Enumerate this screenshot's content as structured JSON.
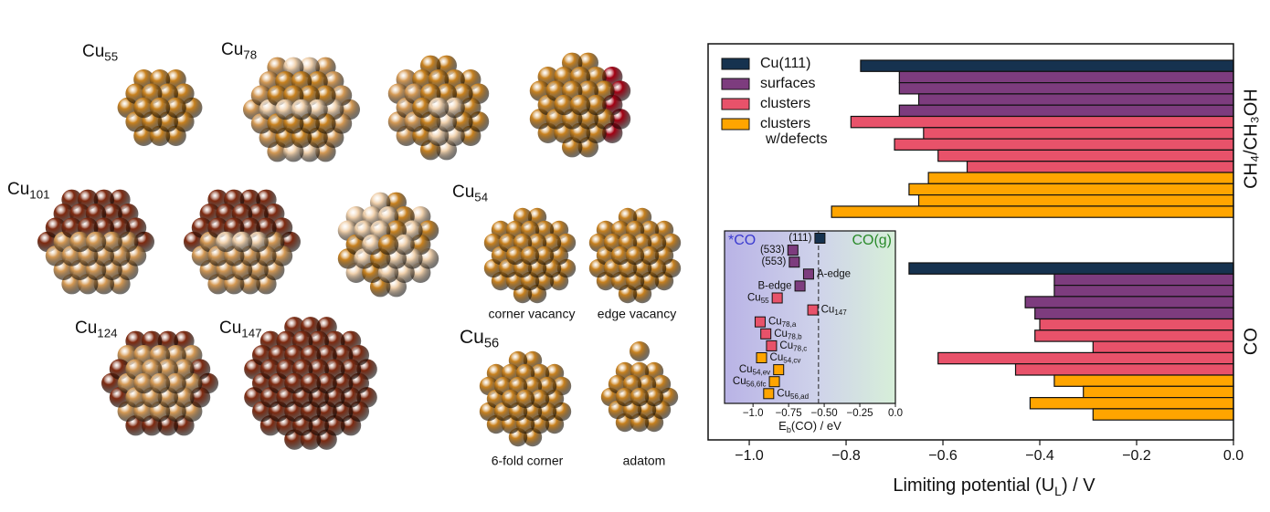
{
  "labels": {
    "cu55": {
      "text": "Cu",
      "sub": "55"
    },
    "cu78": {
      "text": "Cu",
      "sub": "78"
    },
    "cu101": {
      "text": "Cu",
      "sub": "101"
    },
    "cu54": {
      "text": "Cu",
      "sub": "54"
    },
    "cu124": {
      "text": "Cu",
      "sub": "124"
    },
    "cu147": {
      "text": "Cu",
      "sub": "147"
    },
    "cu56": {
      "text": "Cu",
      "sub": "56"
    },
    "corner": "corner vacancy",
    "edge": "edge vacancy",
    "sixfold": "6-fold corner",
    "adatom": "adatom"
  },
  "chart_data": [
    {
      "type": "bar",
      "xlabel": {
        "text": "Limiting potential (U",
        "sub": "L",
        "tail": ") / V"
      },
      "xlim": [
        -1.085,
        0
      ],
      "xticks": [
        {
          "value": -1.0,
          "label": "−1.0"
        },
        {
          "value": -0.8,
          "label": "−0.8"
        },
        {
          "value": -0.6,
          "label": "−0.6"
        },
        {
          "value": -0.4,
          "label": "−0.4"
        },
        {
          "value": -0.2,
          "label": "−0.2"
        },
        {
          "value": 0,
          "label": "0.0"
        }
      ],
      "legend": [
        {
          "name": "Cu(111)",
          "color": "#16324f"
        },
        {
          "name": "surfaces",
          "color": "#7d3c7e"
        },
        {
          "name": "clusters",
          "color": "#e8526a"
        },
        {
          "name": "clusters",
          "name2": "w/defects",
          "color": "#ffa500"
        }
      ],
      "groups": [
        {
          "label": "CH₄/CH₃OH",
          "series": [
            {
              "values": [
                -0.77
              ]
            },
            {
              "values": [
                -0.69,
                -0.69,
                -0.65,
                -0.69
              ]
            },
            {
              "values": [
                -0.79,
                -0.64,
                -0.7,
                -0.61,
                -0.55
              ]
            },
            {
              "values": [
                -0.63,
                -0.67,
                -0.65,
                -0.83
              ]
            }
          ]
        },
        {
          "label": "CO",
          "series": [
            {
              "values": [
                -0.67
              ]
            },
            {
              "values": [
                -0.37,
                -0.37,
                -0.43,
                -0.41
              ]
            },
            {
              "values": [
                -0.4,
                -0.41,
                -0.29,
                -0.61,
                -0.45
              ]
            },
            {
              "values": [
                -0.37,
                -0.31,
                -0.42,
                -0.29
              ]
            }
          ]
        }
      ]
    },
    {
      "type": "scatter",
      "xlabel": {
        "text": "E",
        "sub": "b",
        "tail": "(CO) / eV"
      },
      "left_label": "*CO",
      "right_label": "CO(g)",
      "xlim": [
        -1.2,
        0
      ],
      "xticks": [
        {
          "value": -1.0,
          "label": "−1.0"
        },
        {
          "value": -0.75,
          "label": "−0.75"
        },
        {
          "value": -0.5,
          "label": "−0.50"
        },
        {
          "value": -0.25,
          "label": "−0.25"
        },
        {
          "value": 0,
          "label": "0.0"
        }
      ],
      "vline": -0.54,
      "points": [
        {
          "label": {
            "text": "(111)"
          },
          "x": -0.53,
          "color": "#16324f"
        },
        {
          "label": {
            "text": "(533)"
          },
          "x": -0.72,
          "color": "#7d3c7e"
        },
        {
          "label": {
            "text": "(553)"
          },
          "x": -0.71,
          "color": "#7d3c7e"
        },
        {
          "label": {
            "text": "A-edge"
          },
          "x": -0.61,
          "color": "#7d3c7e"
        },
        {
          "label": {
            "text": "B-edge"
          },
          "x": -0.67,
          "color": "#7d3c7e"
        },
        {
          "label": {
            "text": "Cu",
            "sub": "55"
          },
          "x": -0.83,
          "color": "#e8526a"
        },
        {
          "label": {
            "text": "Cu",
            "sub": "147"
          },
          "x": -0.58,
          "color": "#e8526a"
        },
        {
          "label": {
            "text": "Cu",
            "sub": "78,a"
          },
          "x": -0.95,
          "color": "#e8526a"
        },
        {
          "label": {
            "text": "Cu",
            "sub": "78,b"
          },
          "x": -0.91,
          "color": "#e8526a"
        },
        {
          "label": {
            "text": "Cu",
            "sub": "78,c"
          },
          "x": -0.87,
          "color": "#e8526a"
        },
        {
          "label": {
            "text": "Cu",
            "sub": "54,cv"
          },
          "x": -0.94,
          "color": "#ffa500"
        },
        {
          "label": {
            "text": "Cu",
            "sub": "54,ev"
          },
          "x": -0.82,
          "color": "#ffa500"
        },
        {
          "label": {
            "text": "Cu",
            "sub": "56,6fc"
          },
          "x": -0.85,
          "color": "#ffa500"
        },
        {
          "label": {
            "text": "Cu",
            "sub": "56,ad"
          },
          "x": -0.89,
          "color": "#ffa500"
        }
      ]
    }
  ]
}
